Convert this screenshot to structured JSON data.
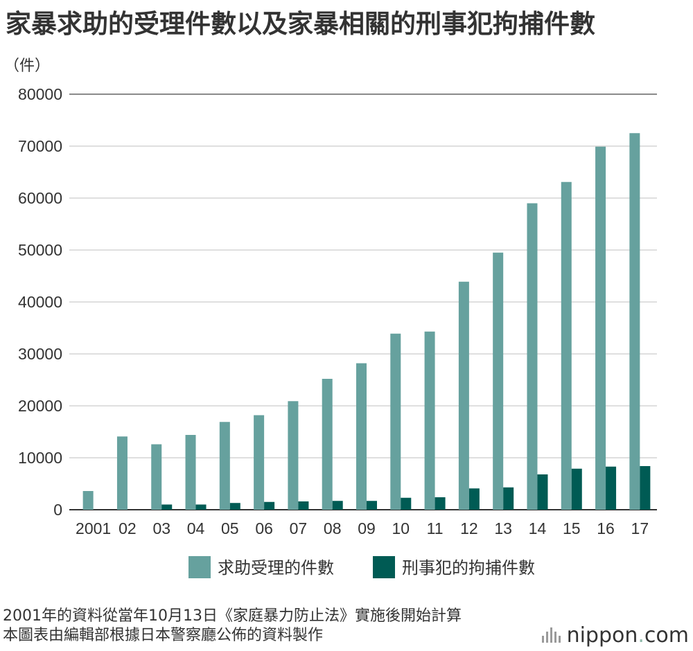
{
  "chart_data": {
    "type": "bar",
    "title": "家暴求助的受理件數以及家暴相關的刑事犯拘捕件數",
    "ylabel": "（件）",
    "categories": [
      "2001",
      "02",
      "03",
      "04",
      "05",
      "06",
      "07",
      "08",
      "09",
      "10",
      "11",
      "12",
      "13",
      "14",
      "15",
      "16",
      "17"
    ],
    "series": [
      {
        "name": "求助受理的件數",
        "color": "#66a19e",
        "values": [
          3600,
          14100,
          12600,
          14400,
          16900,
          18200,
          20900,
          25200,
          28200,
          33900,
          34300,
          43900,
          49500,
          59000,
          63100,
          69900,
          72500
        ]
      },
      {
        "name": "刑事犯的拘捕件數",
        "color": "#005b54",
        "values": [
          0,
          0,
          1000,
          1000,
          1300,
          1500,
          1600,
          1700,
          1700,
          2300,
          2400,
          4100,
          4300,
          6800,
          7900,
          8300,
          8400
        ]
      }
    ],
    "ylim": [
      0,
      80000
    ],
    "yticks": [
      "0",
      "10000",
      "20000",
      "30000",
      "40000",
      "50000",
      "60000",
      "70000",
      "80000"
    ],
    "grid": true,
    "legend_position": "bottom"
  },
  "notes": [
    "2001年的資料從當年10月13日《家庭暴力防止法》實施後開始計算",
    "本圖表由編輯部根據日本警察廳公佈的資料製作"
  ],
  "brand": {
    "name": "nippon",
    "dot": ".",
    "suffix": "com"
  }
}
